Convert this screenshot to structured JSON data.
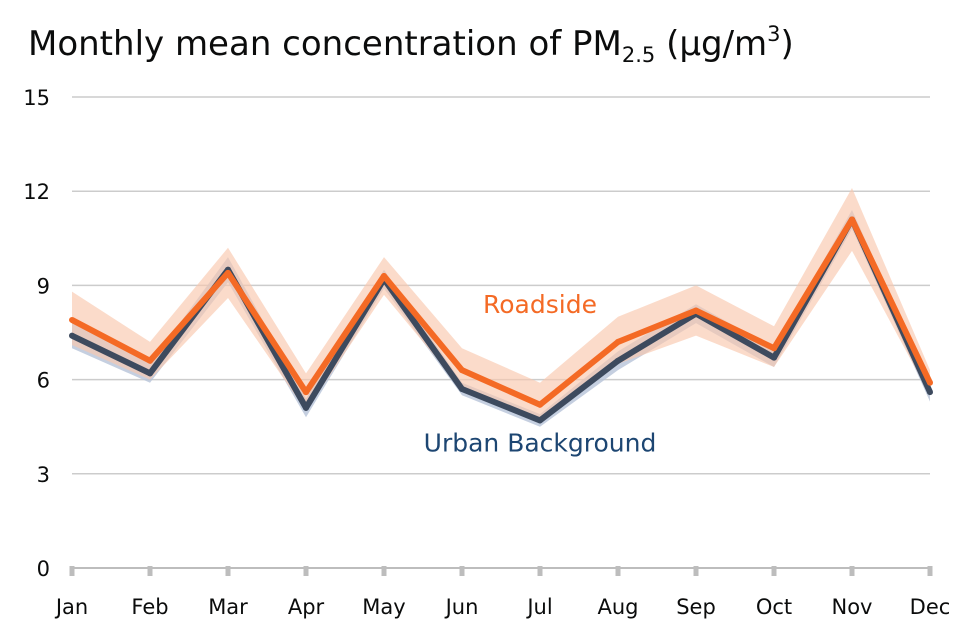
{
  "title": {
    "main": "Monthly mean concentration of PM",
    "subscript": "2.5",
    "unit_open": " (μg/m",
    "superscript": "3",
    "unit_close": ")"
  },
  "chart_data": {
    "type": "line",
    "categories": [
      "Jan",
      "Feb",
      "Mar",
      "Apr",
      "May",
      "Jun",
      "Jul",
      "Aug",
      "Sep",
      "Oct",
      "Nov",
      "Dec"
    ],
    "ylim": [
      0,
      15
    ],
    "yticks": [
      0,
      3,
      6,
      9,
      12,
      15
    ],
    "grid": true,
    "legend": "inline labels",
    "series": [
      {
        "name": "Roadside",
        "color": "#f46a25",
        "band_color": "#f9c8ad",
        "values": [
          7.9,
          6.6,
          9.4,
          5.6,
          9.3,
          6.3,
          5.2,
          7.2,
          8.2,
          7.0,
          11.1,
          5.9
        ],
        "lower": [
          7.1,
          6.0,
          8.6,
          5.0,
          8.7,
          5.7,
          4.6,
          6.5,
          7.4,
          6.4,
          10.1,
          5.5
        ],
        "upper": [
          8.8,
          7.2,
          10.2,
          6.2,
          9.9,
          7.0,
          5.9,
          8.0,
          9.0,
          7.7,
          12.1,
          6.3
        ]
      },
      {
        "name": "Urban Background",
        "color": "#3d4a5e",
        "band_color": "#b6c3d8",
        "values": [
          7.4,
          6.2,
          9.5,
          5.1,
          9.2,
          5.7,
          4.7,
          6.6,
          8.1,
          6.7,
          11.1,
          5.6
        ],
        "lower": [
          7.0,
          5.9,
          9.1,
          4.8,
          8.9,
          5.5,
          4.5,
          6.3,
          7.8,
          6.4,
          10.8,
          5.3
        ],
        "upper": [
          7.8,
          6.5,
          9.9,
          5.4,
          9.5,
          5.9,
          4.9,
          6.9,
          8.4,
          7.0,
          11.4,
          5.9
        ]
      }
    ],
    "annotations": [
      {
        "text": "Roadside",
        "series": 0,
        "color": "#f46a25",
        "month": "Jul",
        "value": 8.4
      },
      {
        "text": "Urban Background",
        "series": 1,
        "color": "#1d4672",
        "month": "Jul",
        "value": 4.0
      }
    ]
  }
}
